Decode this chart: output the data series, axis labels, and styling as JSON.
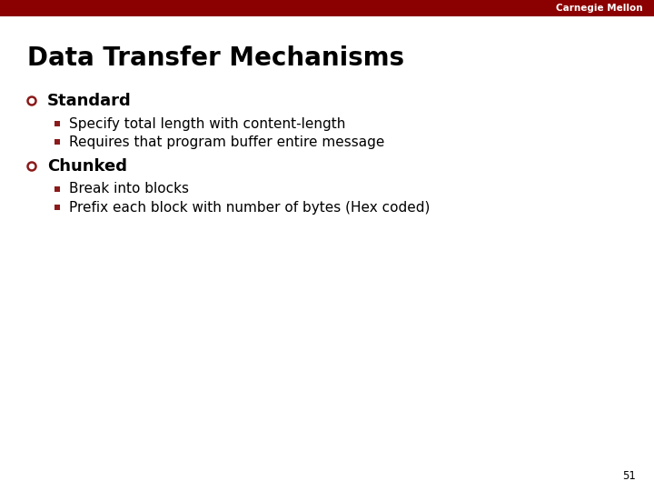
{
  "title": "Data Transfer Mechanisms",
  "header_bar_color": "#8B0000",
  "header_text": "Carnegie Mellon",
  "header_text_color": "#FFFFFF",
  "background_color": "#FFFFFF",
  "title_color": "#000000",
  "title_fontsize": 20,
  "bullet_color": "#8B1A1A",
  "sub_bullet_color": "#8B1A1A",
  "text_color": "#000000",
  "slide_number": "51",
  "bullet_label_fontsize": 13,
  "sub_item_fontsize": 11,
  "bullet_items": [
    {
      "label": "Standard",
      "subitems": [
        "Specify total length with content-length",
        "Requires that program buffer entire message"
      ]
    },
    {
      "label": "Chunked",
      "subitems": [
        "Break into blocks",
        "Prefix each block with number of bytes (Hex coded)"
      ]
    }
  ]
}
